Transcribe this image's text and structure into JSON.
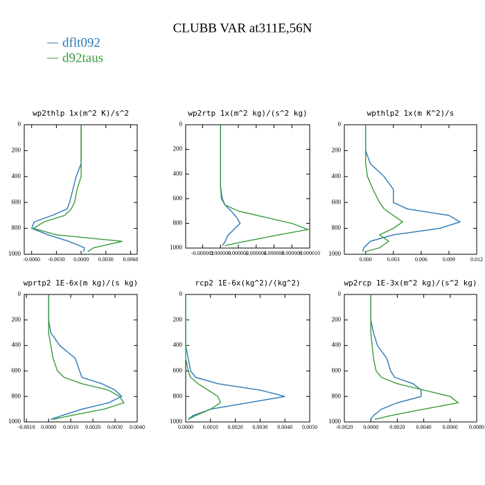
{
  "title": "CLUBB VAR at311E,56N",
  "chart_data": [
    {
      "type": "line",
      "title": "wp2thlp   1x(m^2 K)/s^2",
      "y": [
        0,
        100,
        200,
        300,
        400,
        500,
        600,
        650,
        700,
        750,
        800,
        850,
        900,
        950,
        980
      ],
      "ylim": [
        1000,
        0
      ],
      "yticks": [
        0,
        200,
        400,
        600,
        800,
        1000
      ],
      "xlim": [
        -0.0069,
        0.0068
      ],
      "xticks": [
        {
          "value": -0.006,
          "label": "-0.0060"
        },
        {
          "value": -0.003,
          "label": "-0.0030"
        },
        {
          "value": 0,
          "label": "0.0000"
        },
        {
          "value": 0.003,
          "label": "0.0030"
        },
        {
          "value": 0.006,
          "label": "0.0060"
        }
      ],
      "series": [
        {
          "name": "dflt092",
          "color": "#2878b5",
          "values": [
            0,
            0,
            0,
            0,
            -0.0006,
            -0.001,
            -0.0014,
            -0.0017,
            -0.0035,
            -0.0057,
            -0.006,
            -0.004,
            -0.0015,
            0.0004,
            0.0003
          ]
        },
        {
          "name": "d92taus",
          "color": "#3a9a3a",
          "values": [
            0,
            0,
            0,
            0,
            0,
            -0.0005,
            -0.0008,
            -0.0012,
            -0.002,
            -0.0045,
            -0.0058,
            -0.003,
            0.005,
            0.0015,
            0.0008
          ]
        }
      ]
    },
    {
      "type": "line",
      "title": "wp2rtp   1x(m^2 kg)/(s^2 kg)",
      "y": [
        0,
        100,
        200,
        300,
        400,
        500,
        600,
        650,
        700,
        750,
        800,
        850,
        900,
        950,
        980
      ],
      "ylim": [
        1000,
        0
      ],
      "yticks": [
        0,
        200,
        400,
        600,
        800,
        1000
      ],
      "xlim": [
        -3.9e-06,
        1e-05
      ],
      "xticks": [
        {
          "value": -2e-06,
          "label": "-0.000002"
        },
        {
          "value": 0,
          "label": "0.000000"
        },
        {
          "value": 2e-06,
          "label": "0.000002"
        },
        {
          "value": 4e-06,
          "label": "0.000004"
        },
        {
          "value": 6e-06,
          "label": "0.000006"
        },
        {
          "value": 8e-06,
          "label": "0.000008"
        },
        {
          "value": 1e-05,
          "label": "0.000010"
        }
      ],
      "series": [
        {
          "color": "#2878b5",
          "values": [
            0,
            0,
            0,
            0,
            0,
            0,
            2e-07,
            5e-07,
            1.2e-06,
            1.8e-06,
            2.2e-06,
            1.5e-06,
            8e-07,
            5e-07,
            2e-07
          ]
        },
        {
          "color": "#3a9a3a",
          "values": [
            0,
            0,
            0,
            0,
            0,
            0,
            1e-07,
            5e-07,
            2e-06,
            5e-06,
            8e-06,
            9.8e-06,
            6e-06,
            2.5e-06,
            5e-07
          ]
        }
      ]
    },
    {
      "type": "line",
      "title": "wpthlp2   1x(m K^2)/s",
      "y": [
        0,
        100,
        200,
        300,
        400,
        500,
        600,
        650,
        700,
        750,
        800,
        850,
        900,
        950,
        980
      ],
      "ylim": [
        1000,
        0
      ],
      "yticks": [
        0,
        200,
        400,
        600,
        800,
        1000
      ],
      "xlim": [
        -0.0023,
        0.012
      ],
      "xticks": [
        {
          "value": 0,
          "label": "0.000"
        },
        0.003,
        0.006,
        0.009,
        0.012
      ],
      "series": [
        {
          "color": "#2878b5",
          "values": [
            0,
            0,
            0,
            0.0005,
            0.002,
            0.003,
            0.003,
            0.0045,
            0.009,
            0.0102,
            0.008,
            0.003,
            0.0005,
            -0.0002,
            -0.0003
          ]
        },
        {
          "color": "#3a9a3a",
          "values": [
            0,
            0,
            0,
            0,
            0.0002,
            0.0008,
            0.0015,
            0.002,
            0.003,
            0.004,
            0.003,
            0.0015,
            0.0025,
            0.0015,
            0
          ]
        }
      ]
    },
    {
      "type": "line",
      "title": "wprtp2   1E-6x(m kg)/(s kg)",
      "y": [
        0,
        100,
        200,
        300,
        400,
        500,
        600,
        650,
        700,
        750,
        800,
        850,
        900,
        950,
        980
      ],
      "ylim": [
        1000,
        0
      ],
      "yticks": [
        0,
        200,
        400,
        600,
        800,
        1000
      ],
      "xlim": [
        -0.0011,
        0.004
      ],
      "xticks": [
        {
          "value": -0.001,
          "label": "-0.0010"
        },
        {
          "value": 0,
          "label": "0.0000"
        },
        {
          "value": 0.001,
          "label": "0.0010"
        },
        {
          "value": 0.002,
          "label": "0.0020"
        },
        {
          "value": 0.003,
          "label": "0.0030"
        },
        {
          "value": 0.004,
          "label": "0.0040"
        }
      ],
      "series": [
        {
          "color": "#2878b5",
          "values": [
            0,
            0,
            0,
            0.0001,
            0.0005,
            0.0012,
            0.0014,
            0.0015,
            0.0024,
            0.003,
            0.0033,
            0.0027,
            0.0015,
            0.0006,
            0.0001
          ]
        },
        {
          "color": "#3a9a3a",
          "values": [
            0,
            0,
            0,
            0,
            0.0001,
            0.0002,
            0.0004,
            0.0007,
            0.0015,
            0.0027,
            0.0032,
            0.0034,
            0.0025,
            0.001,
            0.0002
          ]
        }
      ]
    },
    {
      "type": "line",
      "title": "rcp2   1E-6x(kg^2)/(kg^2)",
      "y": [
        0,
        100,
        200,
        300,
        400,
        500,
        600,
        650,
        700,
        750,
        800,
        850,
        900,
        950,
        980
      ],
      "ylim": [
        1000,
        0
      ],
      "yticks": [
        0,
        200,
        400,
        600,
        800,
        1000
      ],
      "xlim": [
        0,
        0.005
      ],
      "xticks": [
        {
          "value": 0,
          "label": "0.0000"
        },
        {
          "value": 0.001,
          "label": "0.0010"
        },
        {
          "value": 0.002,
          "label": "0.0020"
        },
        {
          "value": 0.003,
          "label": "0.0030"
        },
        {
          "value": 0.004,
          "label": "0.0040"
        },
        {
          "value": 0.005,
          "label": "0.0050"
        }
      ],
      "series": [
        {
          "color": "#2878b5",
          "values": [
            0,
            0,
            0,
            0,
            0,
            0.0001,
            0.0002,
            0.0004,
            0.0013,
            0.003,
            0.004,
            0.0025,
            0.001,
            0.0003,
            0.0001
          ]
        },
        {
          "color": "#3a9a3a",
          "values": [
            0,
            0,
            0,
            0,
            0,
            0,
            0.0001,
            0.0002,
            0.0005,
            0.0009,
            0.0013,
            0.0014,
            0.001,
            0.0004,
            0.0001
          ]
        }
      ]
    },
    {
      "type": "line",
      "title": "wp2rcp   1E-3x(m^2 kg)/(s^2 kg)",
      "y": [
        0,
        100,
        200,
        300,
        400,
        500,
        600,
        650,
        700,
        750,
        800,
        850,
        900,
        950,
        980
      ],
      "ylim": [
        1000,
        0
      ],
      "yticks": [
        0,
        200,
        400,
        600,
        800,
        1000
      ],
      "xlim": [
        -0.002,
        0.008
      ],
      "xticks": [
        {
          "value": -0.002,
          "label": "-0.0020"
        },
        {
          "value": 0,
          "label": "0.0000"
        },
        {
          "value": 0.002,
          "label": "0.0020"
        },
        {
          "value": 0.004,
          "label": "0.0040"
        },
        {
          "value": 0.006,
          "label": "0.0060"
        },
        {
          "value": 0.008,
          "label": "0.0080"
        }
      ],
      "series": [
        {
          "color": "#2878b5",
          "values": [
            0,
            0,
            0,
            0.0002,
            0.0005,
            0.0012,
            0.0015,
            0.0018,
            0.0032,
            0.0038,
            0.0038,
            0.002,
            0.0008,
            0.0002,
            0
          ]
        },
        {
          "color": "#3a9a3a",
          "values": [
            0,
            0,
            0,
            0,
            0.0001,
            0.0002,
            0.0004,
            0.0008,
            0.002,
            0.004,
            0.006,
            0.0066,
            0.004,
            0.0015,
            0.0003
          ]
        }
      ]
    }
  ]
}
